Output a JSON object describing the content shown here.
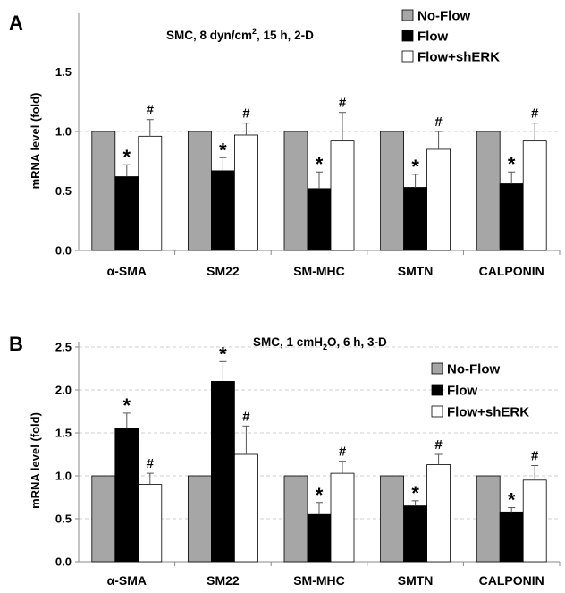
{
  "chart_data": [
    {
      "type": "bar",
      "panel": "A",
      "title": "SMC, 8 dyn/cm², 15 h, 2-D",
      "title_parts": [
        "SMC, 8 dyn/cm",
        "2",
        ", 15 h, 2-D"
      ],
      "ylabel": "mRNA level (fold)",
      "ylim": [
        0,
        1.5
      ],
      "yticks": [
        "0.0",
        "0.5",
        "1.0",
        "1.5"
      ],
      "ytick_values": [
        0,
        0.5,
        1.0,
        1.5
      ],
      "grid": true,
      "legend_position": "top-right",
      "categories": [
        "α-SMA",
        "SM22",
        "SM-MHC",
        "SMTN",
        "CALPONIN"
      ],
      "series": [
        {
          "name": "No-Flow",
          "color": "#a6a6a6",
          "values": [
            1.0,
            1.0,
            1.0,
            1.0,
            1.0
          ],
          "errors": [
            0,
            0,
            0,
            0,
            0
          ],
          "marks": [
            "",
            "",
            "",
            "",
            ""
          ]
        },
        {
          "name": "Flow",
          "color": "#000000",
          "values": [
            0.62,
            0.67,
            0.52,
            0.53,
            0.56
          ],
          "errors": [
            0.1,
            0.11,
            0.14,
            0.11,
            0.1
          ],
          "marks": [
            "*",
            "*",
            "*",
            "*",
            "*"
          ]
        },
        {
          "name": "Flow+shERK",
          "color": "#ffffff",
          "values": [
            0.96,
            0.97,
            0.92,
            0.85,
            0.92
          ],
          "errors": [
            0.14,
            0.1,
            0.24,
            0.15,
            0.15
          ],
          "marks": [
            "#",
            "#",
            "#",
            "#",
            "#"
          ]
        }
      ]
    },
    {
      "type": "bar",
      "panel": "B",
      "title": "SMC, 1 cmH₂O, 6 h, 3-D",
      "title_parts": [
        "SMC, 1 cmH",
        "2",
        "O, 6 h, 3-D"
      ],
      "ylabel": "mRNA level (fold)",
      "ylim": [
        0,
        2.5
      ],
      "yticks": [
        "0.0",
        "0.5",
        "1.0",
        "1.5",
        "2.0",
        "2.5"
      ],
      "ytick_values": [
        0,
        0.5,
        1.0,
        1.5,
        2.0,
        2.5
      ],
      "grid": true,
      "legend_position": "top-right",
      "categories": [
        "α-SMA",
        "SM22",
        "SM-MHC",
        "SMTN",
        "CALPONIN"
      ],
      "series": [
        {
          "name": "No-Flow",
          "color": "#a6a6a6",
          "values": [
            1.0,
            1.0,
            1.0,
            1.0,
            1.0
          ],
          "errors": [
            0,
            0,
            0,
            0,
            0
          ],
          "marks": [
            "",
            "",
            "",
            "",
            ""
          ]
        },
        {
          "name": "Flow",
          "color": "#000000",
          "values": [
            1.55,
            2.1,
            0.55,
            0.65,
            0.58
          ],
          "errors": [
            0.18,
            0.23,
            0.14,
            0.06,
            0.05
          ],
          "marks": [
            "*",
            "*",
            "*",
            "*",
            "*"
          ]
        },
        {
          "name": "Flow+shERK",
          "color": "#ffffff",
          "values": [
            0.9,
            1.25,
            1.03,
            1.13,
            0.95
          ],
          "errors": [
            0.13,
            0.33,
            0.14,
            0.12,
            0.17
          ],
          "marks": [
            "#",
            "#",
            "#",
            "#",
            "#"
          ]
        }
      ]
    }
  ]
}
